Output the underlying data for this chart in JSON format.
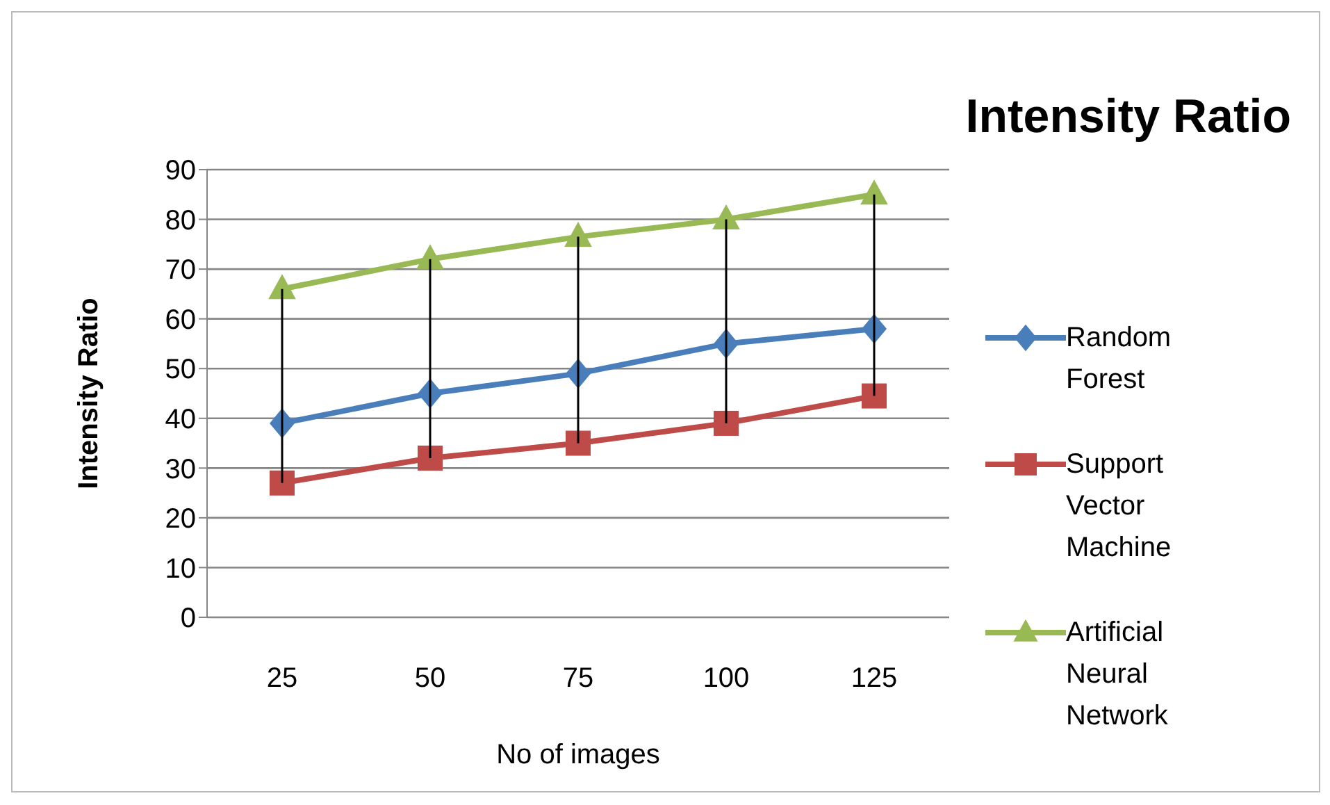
{
  "chart_data": {
    "type": "line",
    "title": "Intensity Ratio",
    "xlabel": "No of images",
    "ylabel": "Intensity Ratio",
    "categories": [
      "25",
      "50",
      "75",
      "100",
      "125"
    ],
    "series": [
      {
        "name": "Random Forest",
        "color": "#4a7ebb",
        "marker": "diamond",
        "values": [
          39,
          45,
          49,
          55,
          58
        ]
      },
      {
        "name": "Support Vector Machine",
        "color": "#be4b48",
        "marker": "square",
        "values": [
          27,
          32,
          35,
          39,
          44.5
        ]
      },
      {
        "name": "Artificial Neural Network",
        "color": "#98b954",
        "marker": "triangle",
        "values": [
          66,
          72,
          76.5,
          80,
          85
        ]
      }
    ],
    "ylim": [
      0,
      90
    ],
    "yticks": [
      0,
      10,
      20,
      30,
      40,
      50,
      60,
      70,
      80,
      90
    ],
    "grid": "y",
    "legend": "right",
    "line_style": "solid"
  }
}
